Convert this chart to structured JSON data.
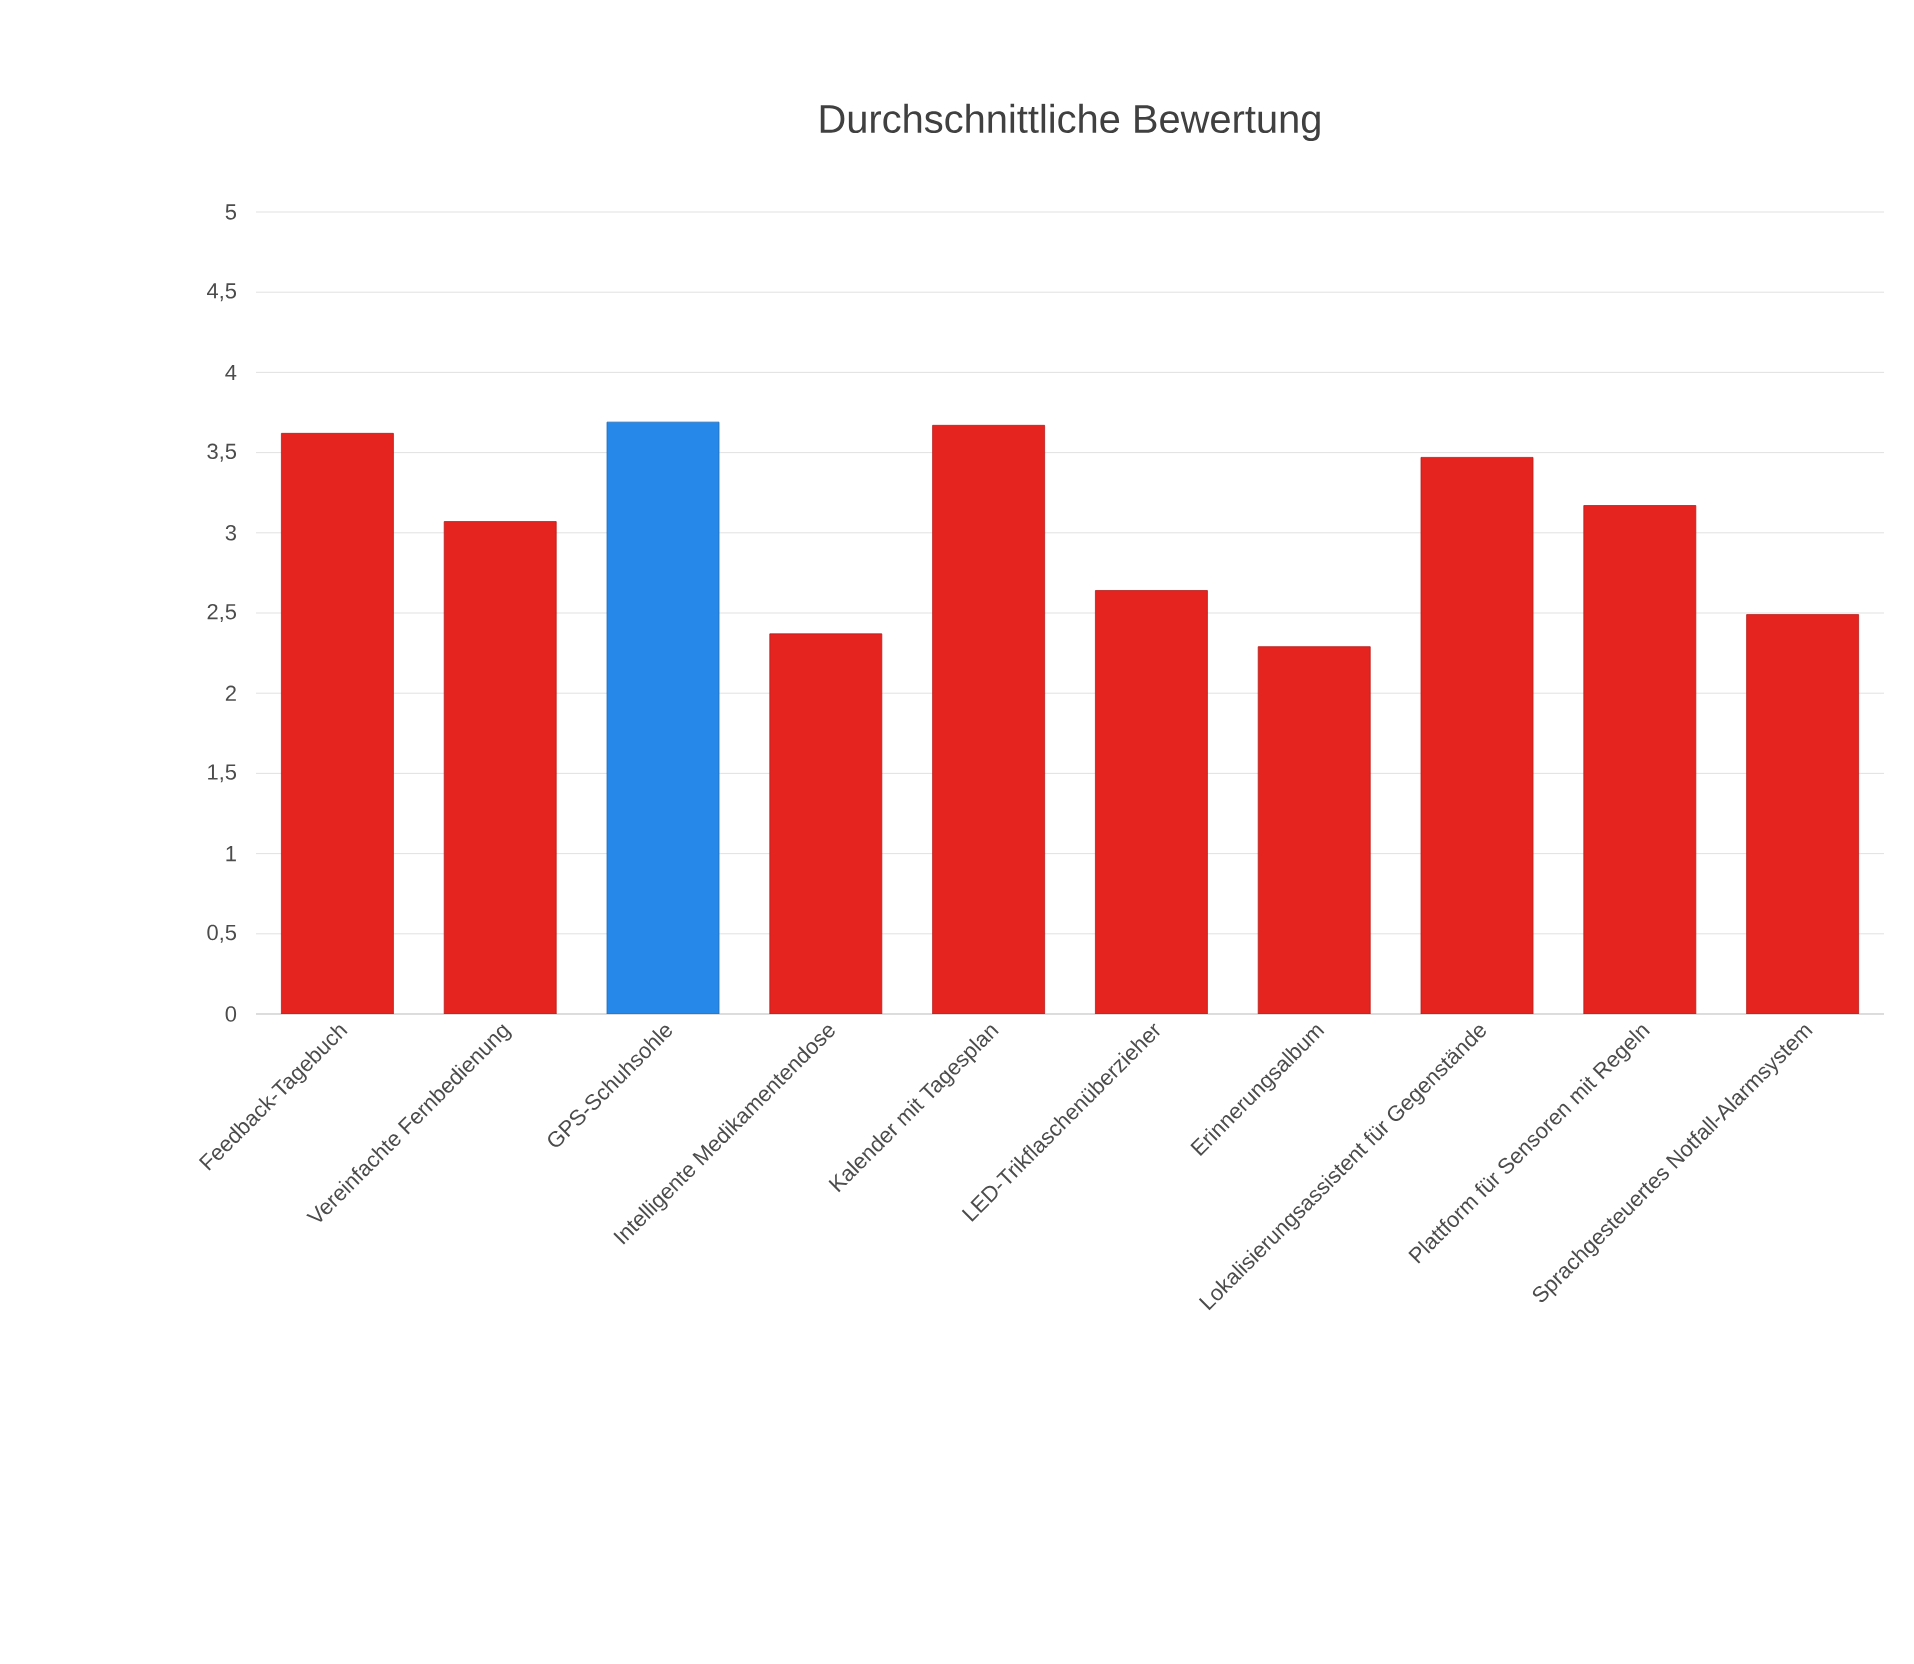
{
  "chart_data": {
    "type": "bar",
    "title": "Durchschnittliche Bewertung",
    "categories": [
      "Feedback-Tagebuch",
      "Vereinfachte Fernbedienung",
      "GPS-Schuhsohle",
      "Intelligente Medikamentendose",
      "Kalender mit Tagesplan",
      "LED-Trikflaschenüberzieher",
      "Erinnerungsalbum",
      "Lokalisierungsassistent für Gegenstände",
      "Plattform für Sensoren mit Regeln",
      "Sprachgesteuertes Notfall-Alarmsystem"
    ],
    "values": [
      3.62,
      3.07,
      3.69,
      2.37,
      3.67,
      2.64,
      2.29,
      3.47,
      3.17,
      2.49
    ],
    "colors": [
      "#e52420",
      "#e52420",
      "#2688e8",
      "#e52420",
      "#e52420",
      "#e52420",
      "#e52420",
      "#e52420",
      "#e52420",
      "#e52420"
    ],
    "ylim": [
      0,
      5
    ],
    "yticks": [
      0,
      {
        "value": 0.5,
        "label": "0,5"
      },
      1,
      {
        "value": 1.5,
        "label": "1,5"
      },
      2,
      {
        "value": 2.5,
        "label": "2,5"
      },
      3,
      {
        "value": 3.5,
        "label": "3,5"
      },
      4,
      {
        "value": 4.5,
        "label": "4,5"
      },
      5
    ],
    "grid": "y"
  }
}
